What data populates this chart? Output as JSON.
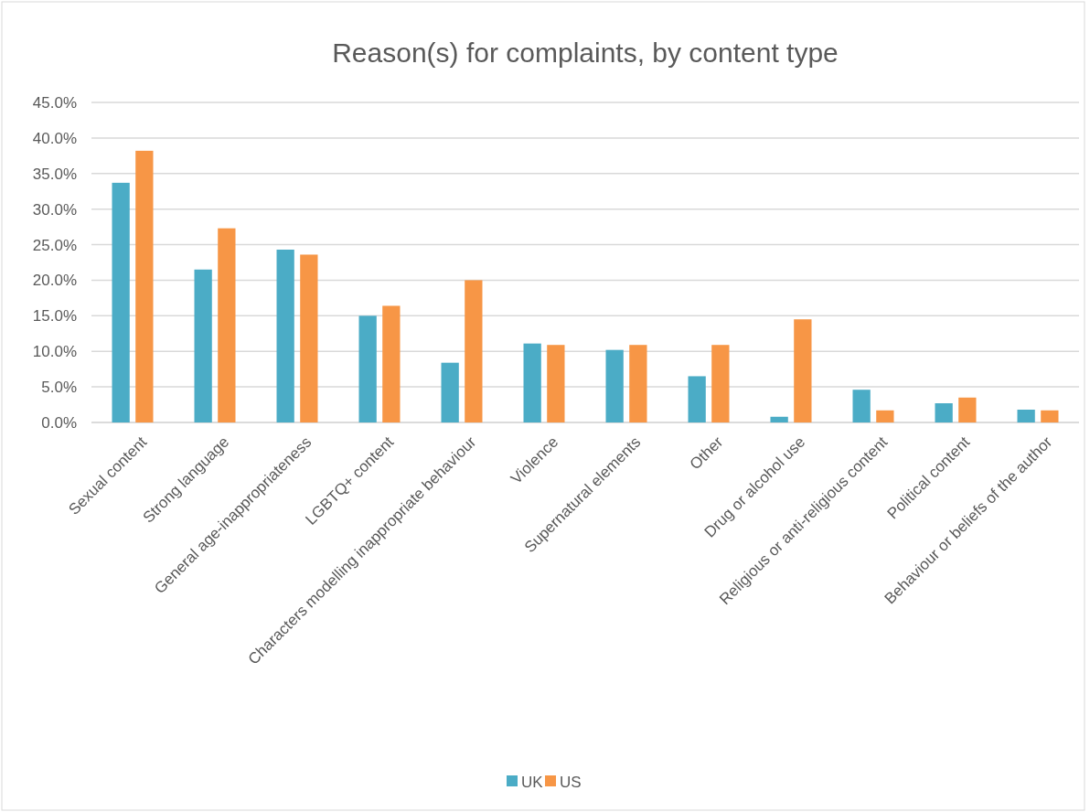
{
  "chart_data": {
    "type": "bar",
    "title": "Reason(s) for complaints, by content type",
    "categories": [
      "Sexual content",
      "Strong language",
      "General age-inappropriateness",
      "LGBTQ+ content",
      "Characters modelling inappropriate behaviour",
      "Violence",
      "Supernatural elements",
      "Other",
      "Drug or alcohol use",
      "Religious or anti-religious content",
      "Political content",
      "Behaviour or beliefs of the author"
    ],
    "series": [
      {
        "name": "UK",
        "color": "#4bacc6",
        "values": [
          33.7,
          21.5,
          24.3,
          15.0,
          8.4,
          11.1,
          10.2,
          6.5,
          0.8,
          4.6,
          2.7,
          1.8
        ]
      },
      {
        "name": "US",
        "color": "#f79646",
        "values": [
          38.2,
          27.3,
          23.6,
          16.4,
          20.0,
          10.9,
          10.9,
          10.9,
          14.5,
          1.7,
          3.5,
          1.7
        ]
      }
    ],
    "ylim": [
      0,
      45
    ],
    "yticks": [
      {
        "value": 0,
        "label": "0.0%"
      },
      {
        "value": 5,
        "label": "5.0%"
      },
      {
        "value": 10,
        "label": "10.0%"
      },
      {
        "value": 15,
        "label": "15.0%"
      },
      {
        "value": 20,
        "label": "20.0%"
      },
      {
        "value": 25,
        "label": "25.0%"
      },
      {
        "value": 30,
        "label": "30.0%"
      },
      {
        "value": 35,
        "label": "35.0%"
      },
      {
        "value": 40,
        "label": "40.0%"
      },
      {
        "value": 45,
        "label": "45.0%"
      }
    ],
    "grid": "y",
    "legend": "bottom"
  }
}
